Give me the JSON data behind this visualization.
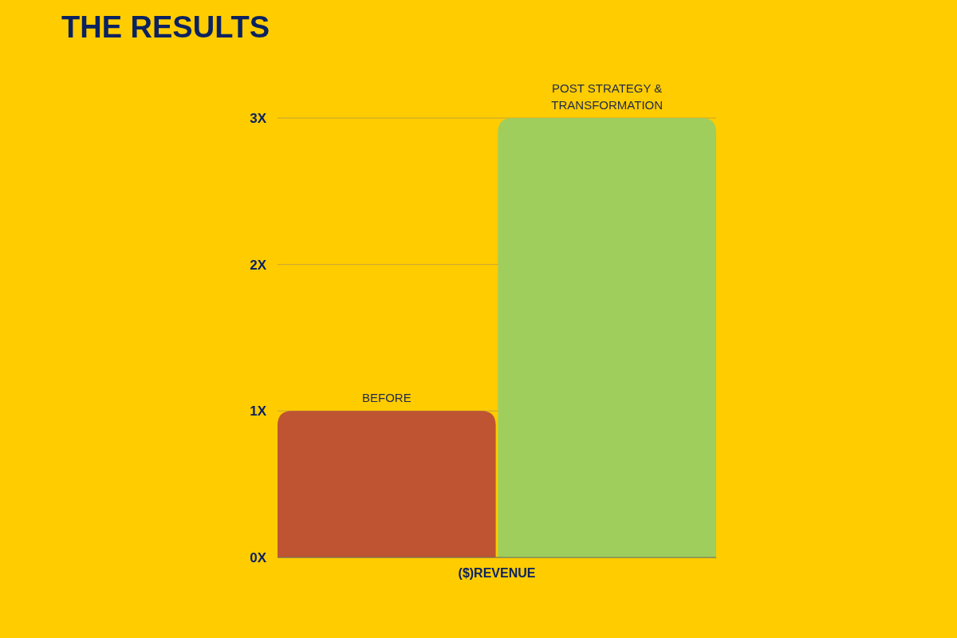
{
  "chart_data": {
    "type": "bar",
    "title": "THE RESULTS",
    "categories": [
      "($)REVENUE"
    ],
    "series": [
      {
        "name": "BEFORE",
        "color": "#be5432",
        "values": [
          1
        ]
      },
      {
        "name": "POST STRATEGY & TRANSFORMATION",
        "color": "#9fce5c",
        "values": [
          3
        ]
      }
    ],
    "ylim": [
      0,
      3
    ],
    "yticks": [
      {
        "value": 0,
        "label": "0X"
      },
      {
        "value": 1,
        "label": "1X"
      },
      {
        "value": 2,
        "label": "2X"
      },
      {
        "value": 3,
        "label": "3X"
      }
    ],
    "grid": "y"
  }
}
